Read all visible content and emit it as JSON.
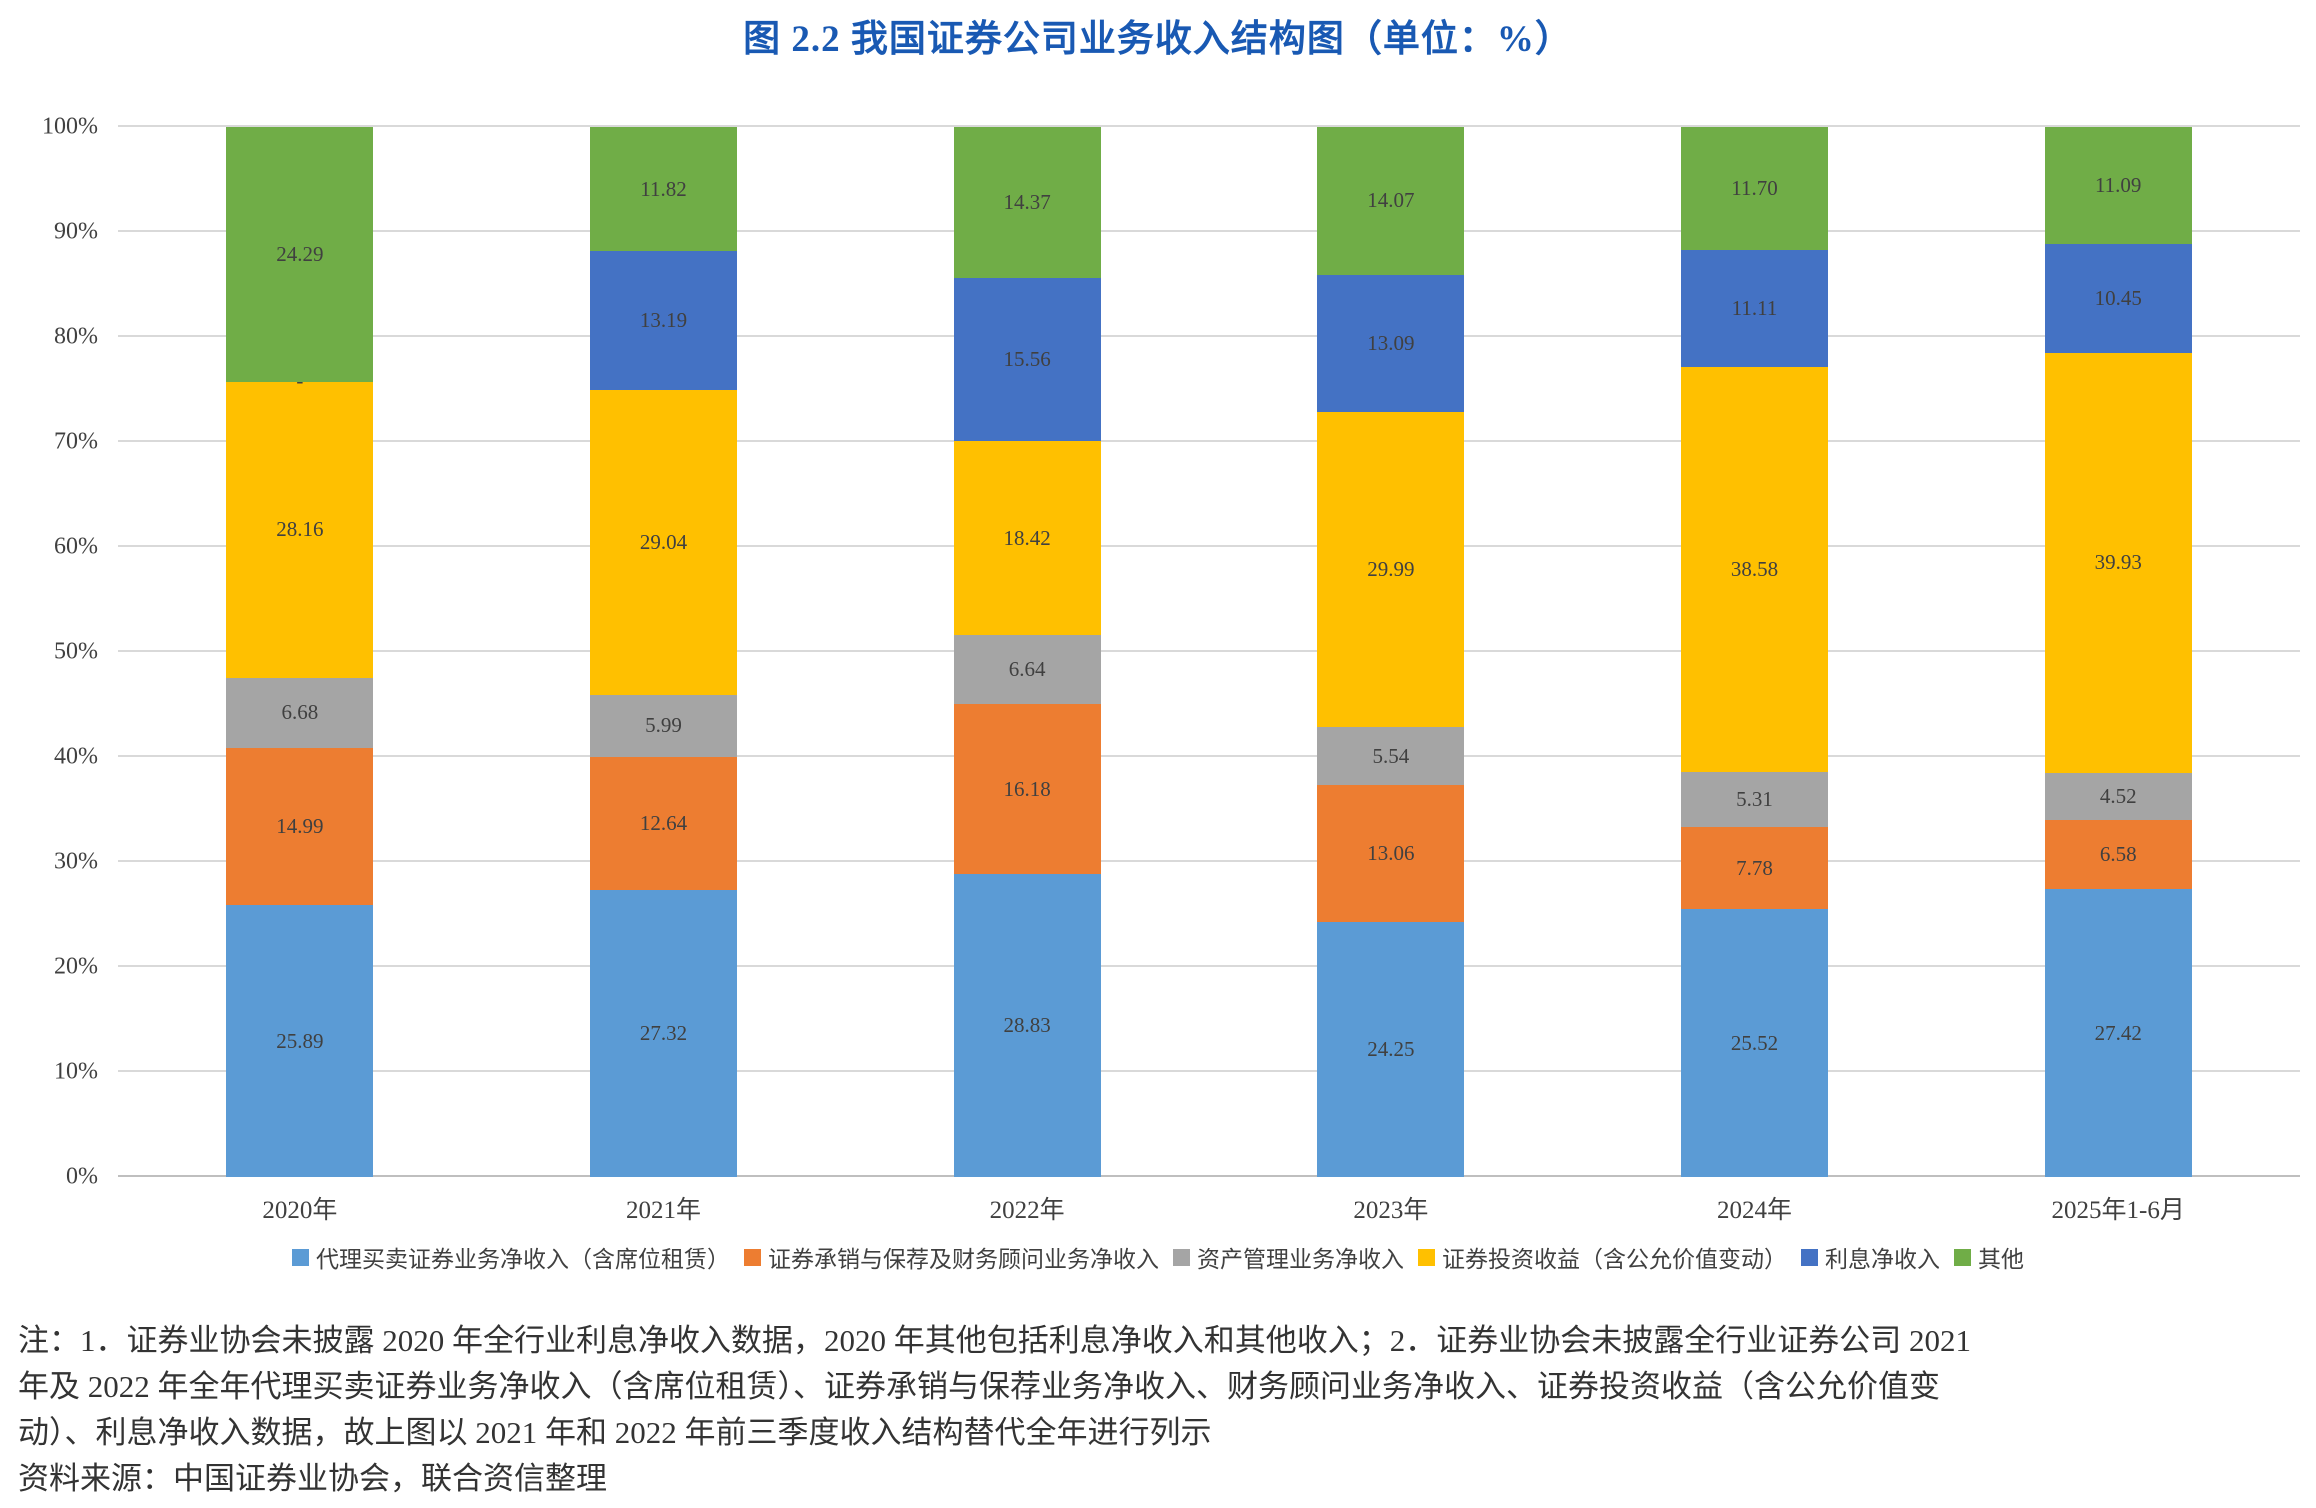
{
  "title": "图 2.2  我国证券公司业务收入结构图（单位：%）",
  "chart_data": {
    "type": "bar",
    "stacked": true,
    "title": "图 2.2  我国证券公司业务收入结构图（单位：%）",
    "unit": "%",
    "ylim": [
      0,
      100
    ],
    "grid": true,
    "legend_position": "bottom",
    "y_ticks": [
      "0%",
      "10%",
      "20%",
      "30%",
      "40%",
      "50%",
      "60%",
      "70%",
      "80%",
      "90%",
      "100%"
    ],
    "categories": [
      "2020年",
      "2021年",
      "2022年",
      "2023年",
      "2024年",
      "2025年1-6月"
    ],
    "series": [
      {
        "name": "代理买卖证券业务净收入（含席位租赁）",
        "color": "#5B9BD5",
        "values": [
          25.89,
          27.32,
          28.83,
          24.25,
          25.52,
          27.42
        ],
        "labels": [
          "25.89",
          "27.32",
          "28.83",
          "24.25",
          "25.52",
          "27.42"
        ]
      },
      {
        "name": "证券承销与保荐及财务顾问业务净收入",
        "color": "#ED7D31",
        "values": [
          14.99,
          12.64,
          16.18,
          13.06,
          7.78,
          6.58
        ],
        "labels": [
          "14.99",
          "12.64",
          "16.18",
          "13.06",
          "7.78",
          "6.58"
        ]
      },
      {
        "name": "资产管理业务净收入",
        "color": "#A5A5A5",
        "values": [
          6.68,
          5.99,
          6.64,
          5.54,
          5.31,
          4.52
        ],
        "labels": [
          "6.68",
          "5.99",
          "6.64",
          "5.54",
          "5.31",
          "4.52"
        ]
      },
      {
        "name": "证券投资收益（含公允价值变动）",
        "color": "#FFC000",
        "values": [
          28.16,
          29.04,
          18.42,
          29.99,
          38.58,
          39.93
        ],
        "labels": [
          "28.16",
          "29.04",
          "18.42",
          "29.99",
          "38.58",
          "39.93"
        ]
      },
      {
        "name": "利息净收入",
        "color": "#4472C4",
        "values": [
          0,
          13.19,
          15.56,
          13.09,
          11.11,
          10.45
        ],
        "labels": [
          "-",
          "13.19",
          "15.56",
          "13.09",
          "11.11",
          "10.45"
        ]
      },
      {
        "name": "其他",
        "color": "#70AD47",
        "values": [
          24.29,
          11.82,
          14.37,
          14.07,
          11.7,
          11.09
        ],
        "labels": [
          "24.29",
          "11.82",
          "14.37",
          "14.07",
          "11.70",
          "11.09"
        ]
      }
    ]
  },
  "notes": [
    "注：1．证券业协会未披露 2020 年全行业利息净收入数据，2020 年其他包括利息净收入和其他收入；2．证券业协会未披露全行业证券公司 2021",
    "年及 2022 年全年代理买卖证券业务净收入（含席位租赁）、证券承销与保荐业务净收入、财务顾问业务净收入、证券投资收益（含公允价值变",
    "动）、利息净收入数据，故上图以 2021 年和 2022 年前三季度收入结构替代全年进行列示"
  ],
  "source_line": "资料来源：中国证券业协会，联合资信整理"
}
